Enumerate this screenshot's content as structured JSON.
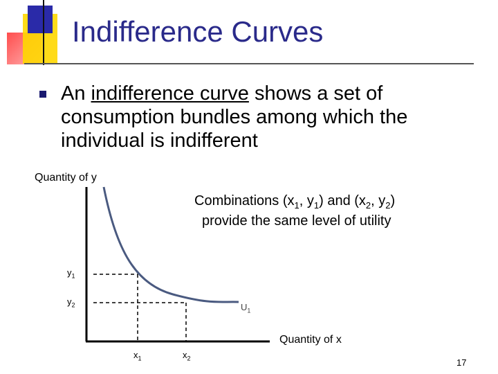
{
  "slide": {
    "title": "Indifference Curves",
    "bullet": {
      "pre": "An ",
      "underlined": "indifference curve",
      "post": " shows a set of consumption bundles among which the individual is indifferent"
    },
    "page_number": "17"
  },
  "diagram": {
    "y_axis_label": "Quantity of y",
    "x_axis_label": "Quantity of x",
    "combo": {
      "line1_part1": "Combinations (x",
      "sub1": "1",
      "line1_part2": ", y",
      "sub2": "1",
      "line1_part3": ") and (x",
      "sub3": "2",
      "line1_part4": ", y",
      "sub4": "2",
      "line1_part5": ")",
      "line2": "provide the same level of utility"
    },
    "y1": {
      "base": "y",
      "sub": "1"
    },
    "y2": {
      "base": "y",
      "sub": "2"
    },
    "x1": {
      "base": "x",
      "sub": "1"
    },
    "x2": {
      "base": "x",
      "sub": "2"
    },
    "curve": {
      "base": "U",
      "sub": "1"
    },
    "colors": {
      "curve": "#4a5a80",
      "title": "#2a2a8a"
    }
  }
}
